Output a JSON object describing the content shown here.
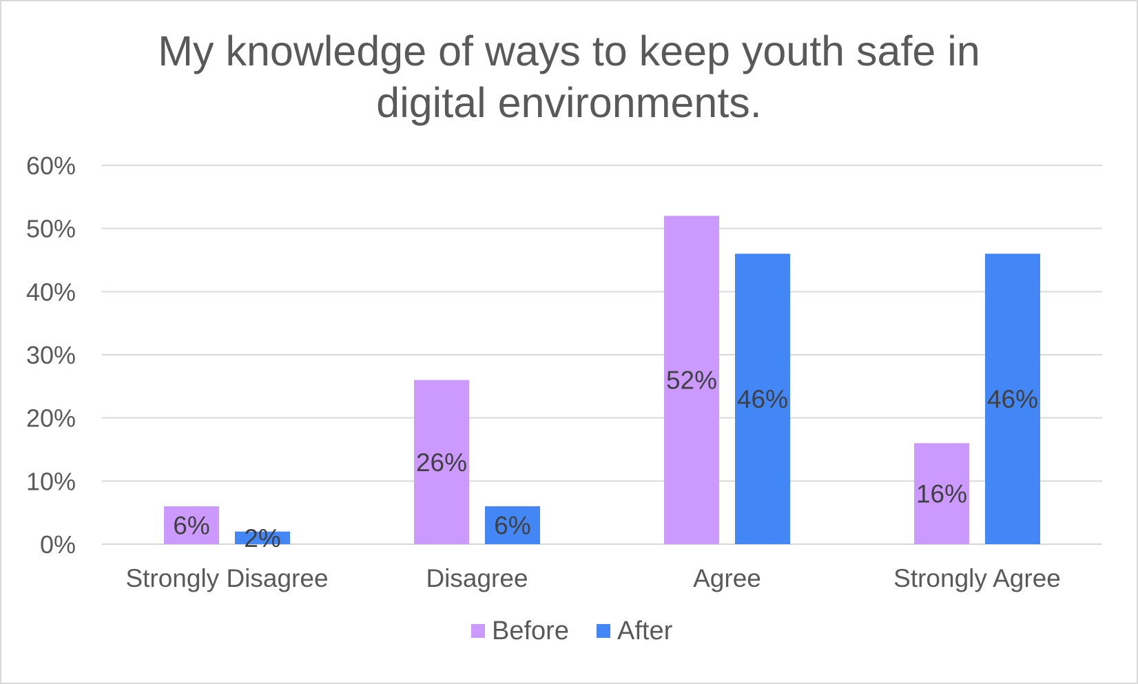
{
  "chart_data": {
    "type": "bar",
    "title": [
      "My knowledge of ways to keep youth safe in",
      "digital environments."
    ],
    "categories": [
      "Strongly Disagree",
      "Disagree",
      "Agree",
      "Strongly Agree"
    ],
    "series": [
      {
        "name": "Before",
        "color": "#cc99ff",
        "values": [
          6,
          26,
          52,
          16
        ],
        "labels": [
          "6%",
          "26%",
          "52%",
          "16%"
        ]
      },
      {
        "name": "After",
        "color": "#4287f5",
        "values": [
          2,
          6,
          46,
          46
        ],
        "labels": [
          "2%",
          "6%",
          "46%",
          "46%"
        ]
      }
    ],
    "ylim": [
      0,
      60
    ],
    "yticks": [
      0,
      10,
      20,
      30,
      40,
      50,
      60
    ],
    "ytick_labels": [
      "0%",
      "10%",
      "20%",
      "30%",
      "40%",
      "50%",
      "60%"
    ],
    "xlabel": "",
    "ylabel": "",
    "grid": true,
    "gridline_color": "#d9d9d9",
    "legend_position": "bottom"
  }
}
